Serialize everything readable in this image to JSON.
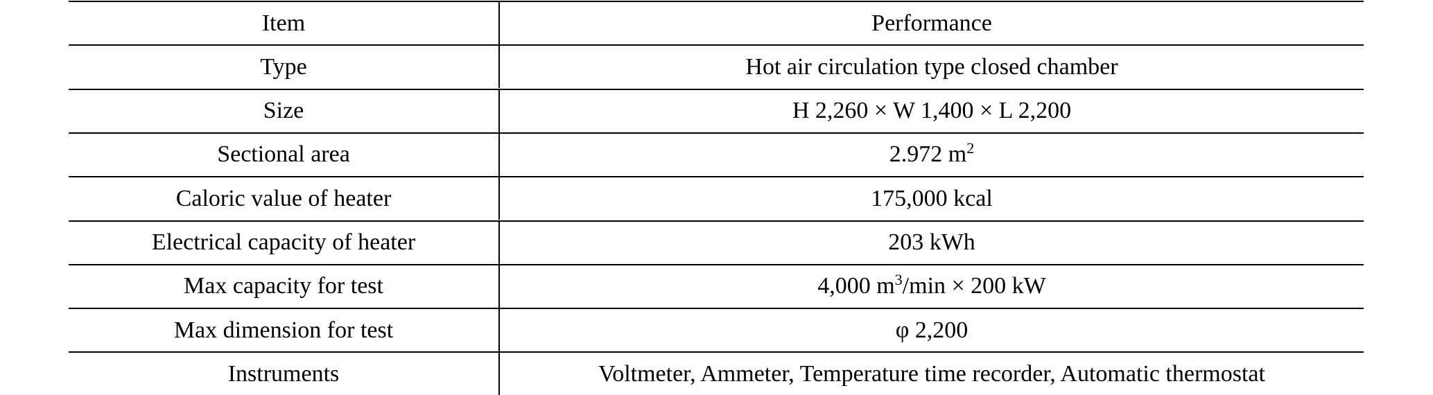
{
  "table": {
    "header": [
      "Item",
      "Performance"
    ],
    "rows": [
      {
        "item": "Type",
        "performance": [
          {
            "text": "Hot air circulation type closed chamber"
          }
        ]
      },
      {
        "item": "Size",
        "performance": [
          {
            "text": "H 2,260 × W 1,400 × L 2,200"
          }
        ]
      },
      {
        "item": "Sectional area",
        "performance": [
          {
            "text": "2.972 m"
          },
          {
            "sup": "2"
          }
        ]
      },
      {
        "item": "Caloric value of heater",
        "performance": [
          {
            "text": "175,000 kcal"
          }
        ]
      },
      {
        "item": "Electrical capacity of heater",
        "performance": [
          {
            "text": "203 kWh"
          }
        ]
      },
      {
        "item": "Max capacity for test",
        "performance": [
          {
            "text": "4,000 m"
          },
          {
            "sup": "3"
          },
          {
            "text": "/min × 200 kW"
          }
        ]
      },
      {
        "item": "Max dimension for test",
        "performance": [
          {
            "text": "φ 2,200"
          }
        ]
      },
      {
        "item": "Instruments",
        "performance": [
          {
            "text": "Voltmeter, Ammeter, Temperature time recorder, Automatic thermostat"
          }
        ]
      }
    ]
  }
}
